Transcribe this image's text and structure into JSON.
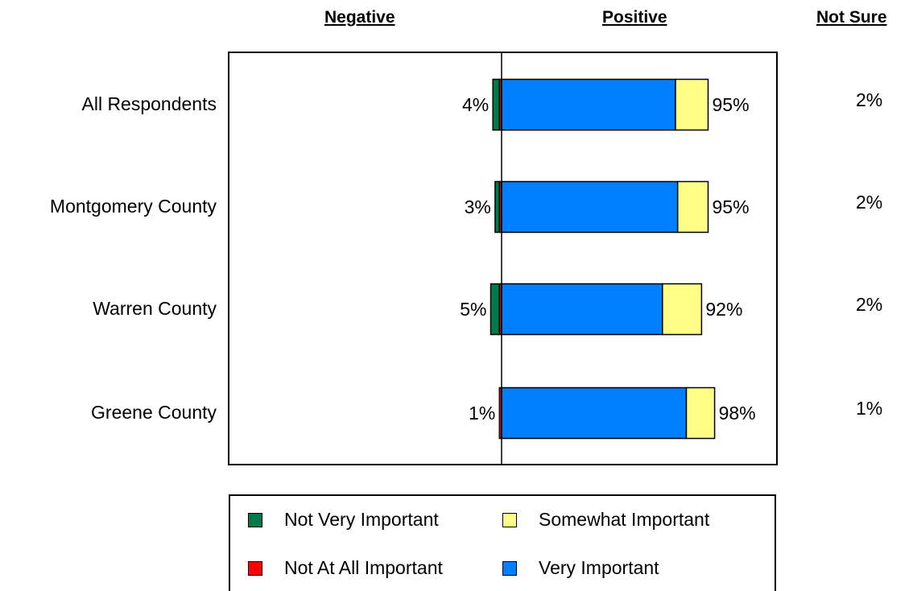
{
  "headers": {
    "negative": "Negative",
    "positive": "Positive",
    "not_sure": "Not Sure"
  },
  "colors": {
    "not_very_important": "#007A4D",
    "not_at_all_important": "#FF0000",
    "somewhat_important": "#FFFF88",
    "very_important": "#0080FF"
  },
  "legend": {
    "not_very_important": "Not Very Important",
    "somewhat_important": "Somewhat Important",
    "not_at_all_important": "Not At All Important",
    "very_important": "Very Important"
  },
  "chart_data": {
    "type": "bar",
    "orientation": "horizontal-stacked-diverging",
    "categories": [
      "All Respondents",
      "Montgomery County",
      "Warren County",
      "Greene County"
    ],
    "series": [
      {
        "name": "Not At All Important",
        "side": "negative",
        "values": [
          1,
          1,
          1,
          1
        ]
      },
      {
        "name": "Not Very Important",
        "side": "negative",
        "values": [
          3,
          2,
          4,
          0
        ]
      },
      {
        "name": "Very Important",
        "side": "positive",
        "values": [
          80,
          81,
          74,
          85
        ]
      },
      {
        "name": "Somewhat Important",
        "side": "positive",
        "values": [
          15,
          14,
          18,
          13
        ]
      }
    ],
    "negative_totals": [
      "4%",
      "3%",
      "5%",
      "1%"
    ],
    "positive_totals": [
      "95%",
      "95%",
      "92%",
      "98%"
    ],
    "not_sure": [
      "2%",
      "2%",
      "2%",
      "1%"
    ],
    "xlim": [
      -100,
      100
    ]
  }
}
